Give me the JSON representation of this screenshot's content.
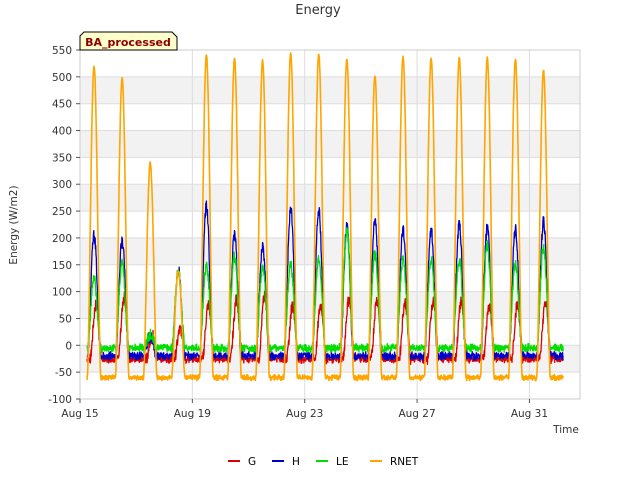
{
  "chart_data": {
    "type": "line",
    "title": "Energy",
    "xlabel": "Time",
    "ylabel": "Energy (W/m2)",
    "annotation": "BA_processed",
    "xlim": [
      0,
      17.8
    ],
    "ylim": [
      -100,
      550
    ],
    "x_ticks": [
      {
        "x": 0,
        "label": "Aug 15"
      },
      {
        "x": 4,
        "label": "Aug 19"
      },
      {
        "x": 8,
        "label": "Aug 23"
      },
      {
        "x": 12,
        "label": "Aug 27"
      },
      {
        "x": 16,
        "label": "Aug 31"
      }
    ],
    "y_ticks": [
      -100,
      -50,
      0,
      50,
      100,
      150,
      200,
      250,
      300,
      350,
      400,
      450,
      500,
      550
    ],
    "grid": true,
    "legend_position": "bottom",
    "series": [
      {
        "name": "G",
        "color": "#dd0000",
        "night": -25,
        "peaks": [
          {
            "day": 0,
            "peak": 75
          },
          {
            "day": 1,
            "peak": 90
          },
          {
            "day": 2,
            "peak": 20
          },
          {
            "day": 3,
            "peak": 30
          },
          {
            "day": 4,
            "peak": 75
          },
          {
            "day": 5,
            "peak": 85
          },
          {
            "day": 6,
            "peak": 90
          },
          {
            "day": 7,
            "peak": 75
          },
          {
            "day": 8,
            "peak": 75
          },
          {
            "day": 9,
            "peak": 85
          },
          {
            "day": 10,
            "peak": 85
          },
          {
            "day": 11,
            "peak": 80
          },
          {
            "day": 12,
            "peak": 80
          },
          {
            "day": 13,
            "peak": 80
          },
          {
            "day": 14,
            "peak": 75
          },
          {
            "day": 15,
            "peak": 75
          },
          {
            "day": 16,
            "peak": 80
          }
        ]
      },
      {
        "name": "H",
        "color": "#0000cc",
        "night": -20,
        "peaks": [
          {
            "day": 0,
            "peak": 205
          },
          {
            "day": 1,
            "peak": 195
          },
          {
            "day": 2,
            "peak": 15
          },
          {
            "day": 3,
            "peak": 140
          },
          {
            "day": 4,
            "peak": 260
          },
          {
            "day": 5,
            "peak": 205
          },
          {
            "day": 6,
            "peak": 185
          },
          {
            "day": 7,
            "peak": 255
          },
          {
            "day": 8,
            "peak": 250
          },
          {
            "day": 9,
            "peak": 220
          },
          {
            "day": 10,
            "peak": 235
          },
          {
            "day": 11,
            "peak": 215
          },
          {
            "day": 12,
            "peak": 215
          },
          {
            "day": 13,
            "peak": 225
          },
          {
            "day": 14,
            "peak": 220
          },
          {
            "day": 15,
            "peak": 215
          },
          {
            "day": 16,
            "peak": 230
          }
        ]
      },
      {
        "name": "LE",
        "color": "#00dd00",
        "night": -5,
        "peaks": [
          {
            "day": 0,
            "peak": 125
          },
          {
            "day": 1,
            "peak": 150
          },
          {
            "day": 2,
            "peak": 20
          },
          {
            "day": 3,
            "peak": 140
          },
          {
            "day": 4,
            "peak": 150
          },
          {
            "day": 5,
            "peak": 165
          },
          {
            "day": 6,
            "peak": 145
          },
          {
            "day": 7,
            "peak": 150
          },
          {
            "day": 8,
            "peak": 160
          },
          {
            "day": 9,
            "peak": 215
          },
          {
            "day": 10,
            "peak": 170
          },
          {
            "day": 11,
            "peak": 160
          },
          {
            "day": 12,
            "peak": 160
          },
          {
            "day": 13,
            "peak": 160
          },
          {
            "day": 14,
            "peak": 185
          },
          {
            "day": 15,
            "peak": 150
          },
          {
            "day": 16,
            "peak": 185
          }
        ]
      },
      {
        "name": "RNET",
        "color": "#ffa500",
        "night": -60,
        "peaks": [
          {
            "day": 0,
            "peak": 520
          },
          {
            "day": 1,
            "peak": 497
          },
          {
            "day": 2,
            "peak": 340
          },
          {
            "day": 3,
            "peak": 140
          },
          {
            "day": 4,
            "peak": 540
          },
          {
            "day": 5,
            "peak": 535
          },
          {
            "day": 6,
            "peak": 530
          },
          {
            "day": 7,
            "peak": 545
          },
          {
            "day": 8,
            "peak": 543
          },
          {
            "day": 9,
            "peak": 533
          },
          {
            "day": 10,
            "peak": 502
          },
          {
            "day": 11,
            "peak": 538
          },
          {
            "day": 12,
            "peak": 535
          },
          {
            "day": 13,
            "peak": 535
          },
          {
            "day": 14,
            "peak": 535
          },
          {
            "day": 15,
            "peak": 532
          },
          {
            "day": 16,
            "peak": 512
          }
        ]
      }
    ]
  }
}
